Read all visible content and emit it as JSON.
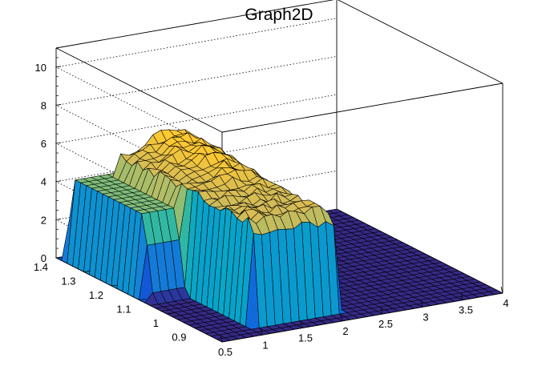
{
  "chart_data": {
    "type": "surface",
    "title": "Graph2D",
    "xlabel": "",
    "ylabel": "",
    "zlabel": "",
    "xlim": [
      0.5,
      4
    ],
    "ylim": [
      0.8,
      1.4
    ],
    "zlim": [
      0,
      11
    ],
    "x_ticks": [
      "0.5",
      "1",
      "1.5",
      "2",
      "2.5",
      "3",
      "3.5",
      "4"
    ],
    "y_ticks": [
      "0.9",
      "1",
      "1.1",
      "1.2",
      "1.3",
      "1.4"
    ],
    "z_ticks": [
      "0",
      "2",
      "4",
      "6",
      "8",
      "10"
    ],
    "grid": "z-dotted",
    "colormap": [
      "#352a87",
      "#0f5cdd",
      "#1481d6",
      "#06a4ca",
      "#2eb7a4",
      "#87bf77",
      "#d1bb59",
      "#fec832",
      "#f9fb0e"
    ],
    "surface": {
      "x_range": [
        0.5,
        4
      ],
      "y_range": [
        0.8,
        1.4
      ],
      "peak_z": 7,
      "outer_plateau_z": 4.3,
      "central_plateau_z": 5.3,
      "central_plateau_x": [
        1.0,
        2.15
      ],
      "central_plateau_y": [
        0.84,
        1.37
      ],
      "outer_plateau_x": [
        0.55,
        2.45
      ]
    }
  }
}
